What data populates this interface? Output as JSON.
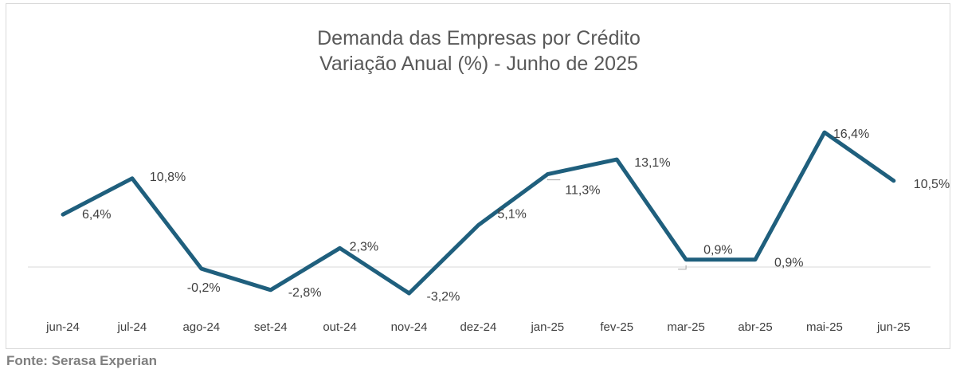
{
  "chart_data": {
    "type": "line",
    "title": [
      "Demanda das Empresas por Crédito",
      "Variação Anual (%) - Junho de 2025"
    ],
    "categories": [
      "jun-24",
      "jul-24",
      "ago-24",
      "set-24",
      "out-24",
      "nov-24",
      "dez-24",
      "jan-25",
      "fev-25",
      "mar-25",
      "abr-25",
      "mai-25",
      "jun-25"
    ],
    "series": [
      {
        "values": [
          6.4,
          10.8,
          -0.2,
          -2.8,
          2.3,
          -3.2,
          5.1,
          11.3,
          13.1,
          0.9,
          0.9,
          16.4,
          10.5
        ],
        "labels": [
          "6,4%",
          "10,8%",
          "-0,2%",
          "-2,8%",
          "2,3%",
          "-3,2%",
          "5,1%",
          "11,3%",
          "13,1%",
          "0,9%",
          "0,9%",
          "16,4%",
          "10,5%"
        ]
      }
    ],
    "ylim": [
      -5,
      20
    ],
    "line_color": "#1f5f7d",
    "grid": false
  },
  "footer": {
    "source": "Fonte: Serasa Experian"
  }
}
